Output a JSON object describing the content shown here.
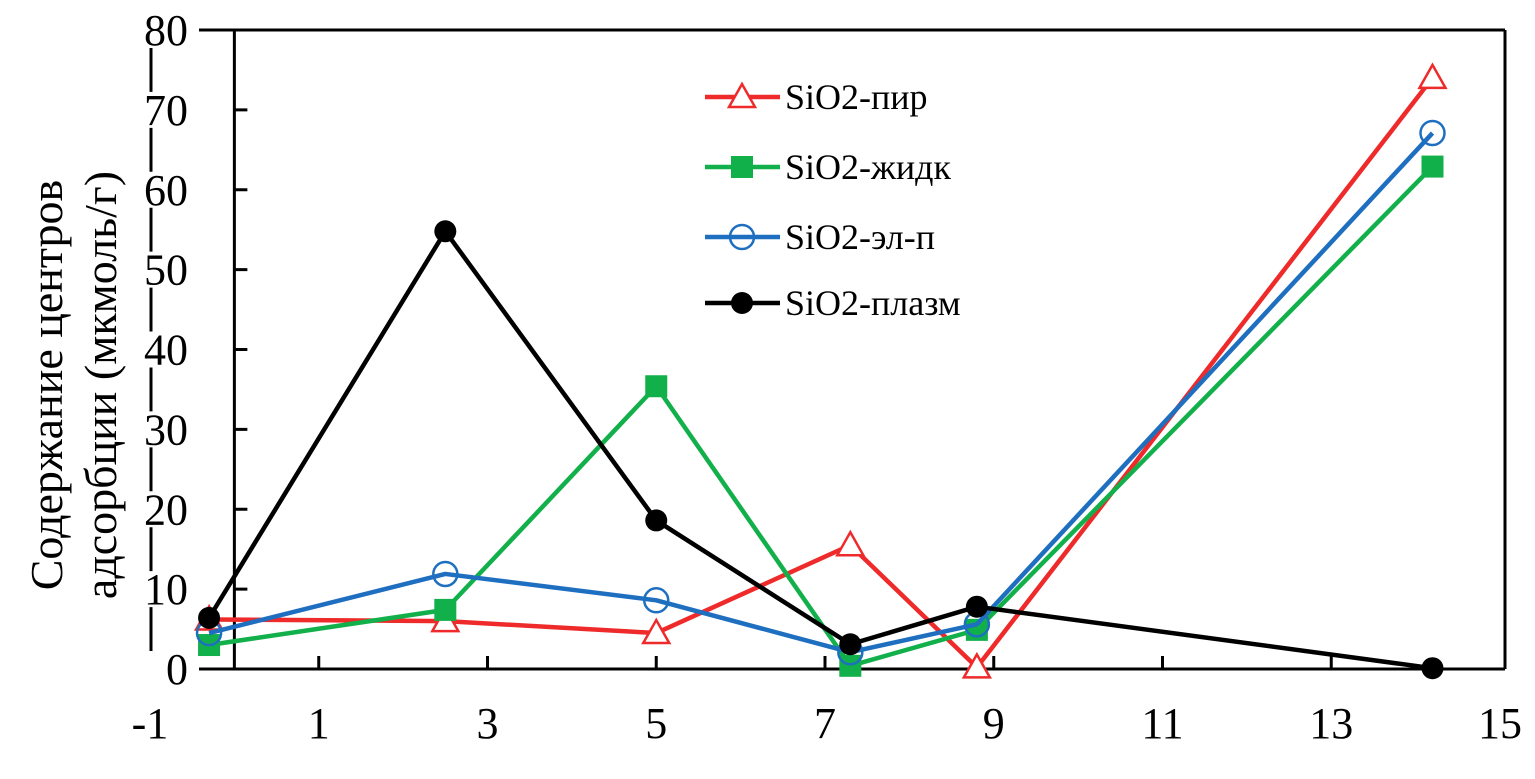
{
  "chart_data": {
    "type": "line",
    "title": "",
    "xlabel": "",
    "ylabel_lines": [
      "Содержание центров",
      "адсорбции (мкмоль/г)"
    ],
    "xlim": [
      -1,
      15
    ],
    "ylim": [
      0,
      80
    ],
    "xticks": [
      "-1",
      "1",
      "3",
      "5",
      "7",
      "9",
      "11",
      "13",
      "15"
    ],
    "yticks": [
      "0",
      "10",
      "20",
      "30",
      "40",
      "50",
      "60",
      "70",
      "80"
    ],
    "grid": false,
    "legend_position": "top-center",
    "x": [
      -0.3,
      2.5,
      5.0,
      7.3,
      8.8,
      14.2
    ],
    "series": [
      {
        "name": "SiO2-пир",
        "color": "#ee2a2a",
        "marker": "triangle-open",
        "values": [
          6.2,
          6.0,
          4.5,
          15.5,
          0.2,
          74.0
        ]
      },
      {
        "name": "SiO2-жидк",
        "color": "#12b04a",
        "marker": "square-filled",
        "values": [
          3.0,
          7.4,
          35.4,
          0.4,
          4.9,
          62.9
        ]
      },
      {
        "name": "SiO2-эл-п",
        "color": "#1f6fc0",
        "marker": "circle-open",
        "values": [
          4.5,
          11.9,
          8.6,
          2.1,
          5.6,
          67.1
        ]
      },
      {
        "name": "SiO2-плазм",
        "color": "#000000",
        "marker": "circle-filled",
        "values": [
          6.4,
          54.8,
          18.6,
          3.1,
          7.8,
          0.1
        ]
      }
    ]
  }
}
